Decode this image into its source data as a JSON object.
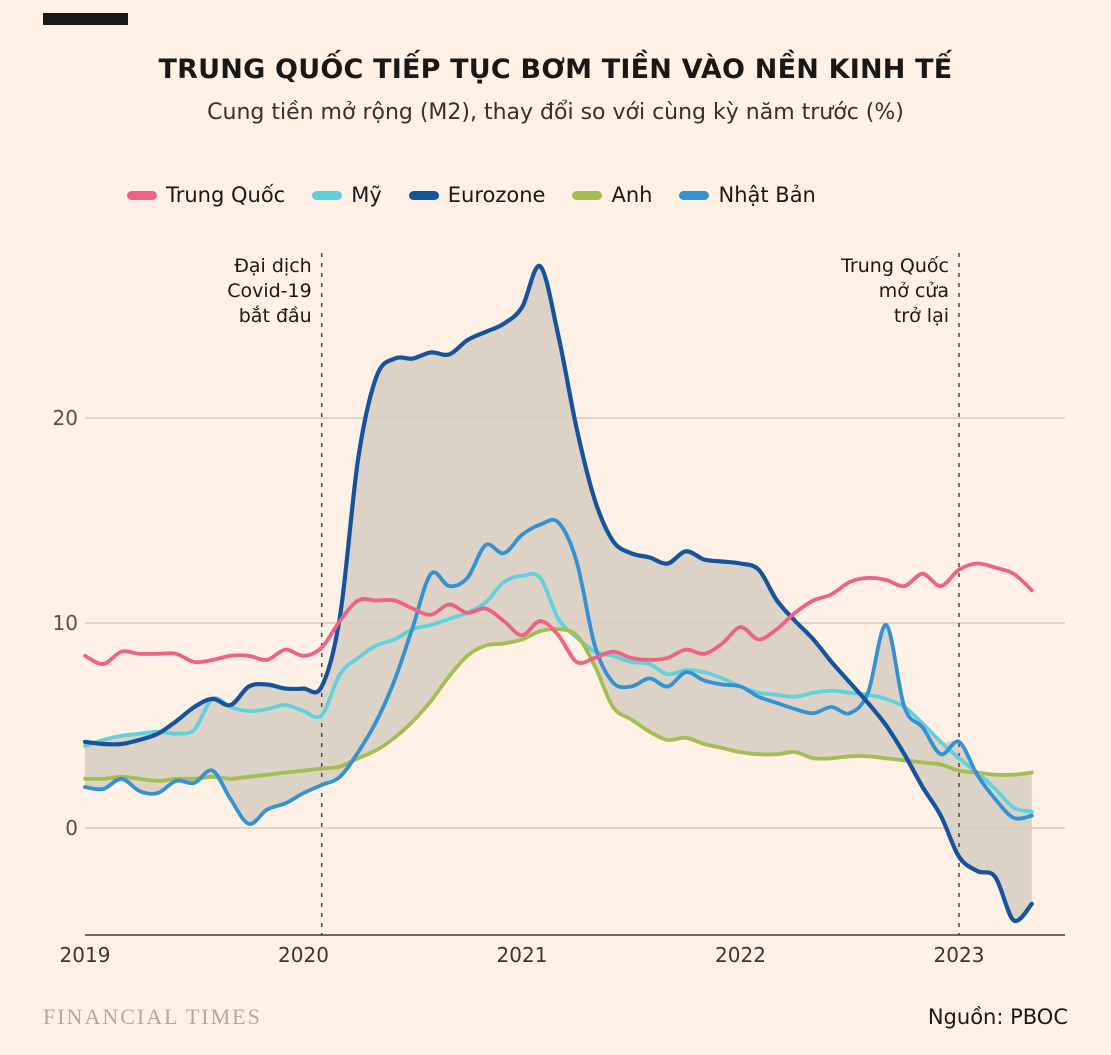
{
  "chart_data": {
    "type": "line",
    "title": "TRUNG QUỐC TIẾP TỤC BƠM TIỀN VÀO NỀN KINH TẾ",
    "subtitle": "Cung tiền mở rộng (M2), thay đổi so với cùng kỳ năm trước (%)",
    "x_unit": "month",
    "x_start": "2019-01",
    "x_end": "2023-05",
    "x_tick_labels": [
      "2019",
      "2020",
      "2021",
      "2022",
      "2023"
    ],
    "y_ticks": [
      0,
      10,
      20
    ],
    "ylim": [
      -5.5,
      28
    ],
    "grid": "horizontal",
    "legend_position": "top-left",
    "series": [
      {
        "name": "Trung Quốc",
        "color": "#ec6482",
        "values": [
          8.4,
          8.0,
          8.6,
          8.5,
          8.5,
          8.5,
          8.1,
          8.2,
          8.4,
          8.4,
          8.2,
          8.7,
          8.4,
          8.8,
          10.1,
          11.1,
          11.1,
          11.1,
          10.7,
          10.4,
          10.9,
          10.5,
          10.7,
          10.1,
          9.4,
          10.1,
          9.4,
          8.1,
          8.3,
          8.6,
          8.3,
          8.2,
          8.3,
          8.7,
          8.5,
          9.0,
          9.8,
          9.2,
          9.7,
          10.5,
          11.1,
          11.4,
          12.0,
          12.2,
          12.1,
          11.8,
          12.4,
          11.8,
          12.6,
          12.9,
          12.7,
          12.4,
          11.6
        ]
      },
      {
        "name": "Mỹ",
        "color": "#5fd0dc",
        "values": [
          4.0,
          4.3,
          4.5,
          4.6,
          4.7,
          4.6,
          4.8,
          6.3,
          5.9,
          5.7,
          5.8,
          6.0,
          5.7,
          5.5,
          7.5,
          8.3,
          8.9,
          9.2,
          9.7,
          9.9,
          10.2,
          10.5,
          11.0,
          12.0,
          12.3,
          12.2,
          10.2,
          9.3,
          8.6,
          8.4,
          8.1,
          8.0,
          7.5,
          7.7,
          7.6,
          7.3,
          6.9,
          6.6,
          6.5,
          6.4,
          6.6,
          6.7,
          6.6,
          6.5,
          6.3,
          5.9,
          5.1,
          4.2,
          3.4,
          2.7,
          1.9,
          1.0,
          0.8
        ]
      },
      {
        "name": "Eurozone",
        "color": "#15539d",
        "values": [
          4.2,
          4.1,
          4.1,
          4.3,
          4.6,
          5.2,
          5.9,
          6.3,
          6.0,
          6.9,
          7.0,
          6.8,
          6.8,
          6.9,
          10.3,
          18.0,
          22.0,
          22.9,
          22.9,
          23.2,
          23.1,
          23.8,
          24.2,
          24.6,
          25.4,
          27.4,
          24.0,
          19.5,
          16.0,
          14.0,
          13.4,
          13.2,
          12.9,
          13.5,
          13.1,
          13.0,
          12.9,
          12.6,
          11.1,
          10.1,
          9.2,
          8.1,
          7.1,
          6.1,
          5.0,
          3.6,
          2.0,
          0.6,
          -1.4,
          -2.1,
          -2.4,
          -4.5,
          -3.7
        ]
      },
      {
        "name": "Anh",
        "color": "#a4bd50",
        "values": [
          2.4,
          2.4,
          2.5,
          2.4,
          2.3,
          2.4,
          2.4,
          2.5,
          2.4,
          2.5,
          2.6,
          2.7,
          2.8,
          2.9,
          3.0,
          3.4,
          3.8,
          4.4,
          5.2,
          6.2,
          7.4,
          8.4,
          8.9,
          9.0,
          9.2,
          9.6,
          9.7,
          9.4,
          7.9,
          5.9,
          5.3,
          4.7,
          4.3,
          4.4,
          4.1,
          3.9,
          3.7,
          3.6,
          3.6,
          3.7,
          3.4,
          3.4,
          3.5,
          3.5,
          3.4,
          3.3,
          3.2,
          3.1,
          2.8,
          2.7,
          2.6,
          2.6,
          2.7
        ]
      },
      {
        "name": "Nhật Bản",
        "color": "#3292d3",
        "values": [
          2.0,
          1.9,
          2.4,
          1.8,
          1.7,
          2.3,
          2.2,
          2.8,
          1.4,
          0.2,
          0.9,
          1.2,
          1.7,
          2.1,
          2.5,
          3.7,
          5.2,
          7.2,
          9.8,
          12.4,
          11.8,
          12.2,
          13.8,
          13.4,
          14.3,
          14.8,
          14.9,
          13.0,
          8.9,
          7.1,
          6.9,
          7.3,
          6.9,
          7.6,
          7.2,
          7.0,
          6.9,
          6.4,
          6.1,
          5.8,
          5.6,
          5.9,
          5.6,
          6.6,
          9.9,
          5.9,
          4.9,
          3.6,
          4.2,
          2.6,
          1.4,
          0.5,
          0.6
        ]
      }
    ],
    "band": {
      "type": "range-envelope",
      "series": [
        "Mỹ",
        "Eurozone",
        "Anh",
        "Nhật Bản"
      ],
      "color": "#d6ccc1",
      "opacity": 0.85
    },
    "annotations": [
      {
        "label": "Đại dịch Covid-19 bắt đầu",
        "lines": [
          "Đại dịch",
          "Covid-19",
          "bắt đầu"
        ],
        "x": "2020-02",
        "month_index": 13
      },
      {
        "label": "Trung Quốc mở cửa trở lại",
        "lines": [
          "Trung Quốc",
          "mở cửa",
          "trở lại"
        ],
        "x": "2023-01",
        "month_index": 48
      }
    ]
  },
  "footer": {
    "brand": "FINANCIAL TIMES",
    "source": "Nguồn: PBOC"
  }
}
